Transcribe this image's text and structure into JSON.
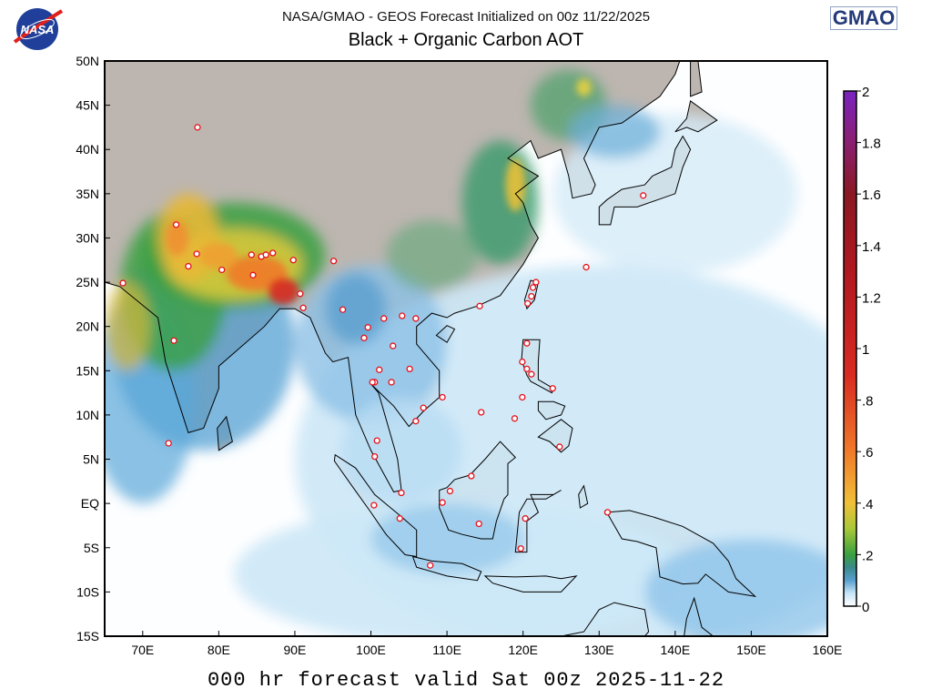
{
  "header": {
    "subtitle": "NASA/GMAO - GEOS Forecast Initialized on 00z 11/22/2025",
    "title": "Black + Organic Carbon AOT",
    "logo_left": "NASA",
    "logo_right": "GMAO"
  },
  "footer": "000 hr forecast valid Sat 00z 2025-11-22",
  "map": {
    "lon_range": [
      65,
      160
    ],
    "lat_range": [
      -15,
      50
    ],
    "lon_ticks": [
      {
        "v": 70,
        "label": "70E"
      },
      {
        "v": 80,
        "label": "80E"
      },
      {
        "v": 90,
        "label": "90E"
      },
      {
        "v": 100,
        "label": "100E"
      },
      {
        "v": 110,
        "label": "110E"
      },
      {
        "v": 120,
        "label": "120E"
      },
      {
        "v": 130,
        "label": "130E"
      },
      {
        "v": 140,
        "label": "140E"
      },
      {
        "v": 150,
        "label": "150E"
      },
      {
        "v": 160,
        "label": "160E"
      }
    ],
    "lat_ticks": [
      {
        "v": 50,
        "label": "50N"
      },
      {
        "v": 45,
        "label": "45N"
      },
      {
        "v": 40,
        "label": "40N"
      },
      {
        "v": 35,
        "label": "35N"
      },
      {
        "v": 30,
        "label": "30N"
      },
      {
        "v": 25,
        "label": "25N"
      },
      {
        "v": 20,
        "label": "20N"
      },
      {
        "v": 15,
        "label": "15N"
      },
      {
        "v": 10,
        "label": "10N"
      },
      {
        "v": 5,
        "label": "5N"
      },
      {
        "v": 0,
        "label": "EQ"
      },
      {
        "v": -5,
        "label": "5S"
      },
      {
        "v": -10,
        "label": "10S"
      },
      {
        "v": -15,
        "label": "15S"
      }
    ],
    "colors": {
      "land": "#bdb6b0",
      "ocean": "#fdfeff",
      "marker": "#e8101a"
    },
    "markers": [
      [
        77.2,
        42.5
      ],
      [
        74.4,
        31.5
      ],
      [
        76,
        26.8
      ],
      [
        77.1,
        28.2
      ],
      [
        80.4,
        26.4
      ],
      [
        84.3,
        28.1
      ],
      [
        84.5,
        25.8
      ],
      [
        85.6,
        27.9
      ],
      [
        86.2,
        28.1
      ],
      [
        87.1,
        28.3
      ],
      [
        89.8,
        27.5
      ],
      [
        95.1,
        27.4
      ],
      [
        67.4,
        24.9
      ],
      [
        90.7,
        23.7
      ],
      [
        91.1,
        22.1
      ],
      [
        96.3,
        21.9
      ],
      [
        74.1,
        18.4
      ],
      [
        99.6,
        19.9
      ],
      [
        99.1,
        18.7
      ],
      [
        101.7,
        20.9
      ],
      [
        104.1,
        21.2
      ],
      [
        105.9,
        20.9
      ],
      [
        102.9,
        17.8
      ],
      [
        101.1,
        15.1
      ],
      [
        105.1,
        15.2
      ],
      [
        100.5,
        13.7
      ],
      [
        100.2,
        13.7
      ],
      [
        102.7,
        13.7
      ],
      [
        106.9,
        10.8
      ],
      [
        109.4,
        12
      ],
      [
        105.9,
        9.3
      ],
      [
        114.3,
        22.3
      ],
      [
        121.7,
        25
      ],
      [
        121.3,
        24.4
      ],
      [
        121.1,
        23.4
      ],
      [
        120.6,
        22.6
      ],
      [
        128.3,
        26.7
      ],
      [
        135.8,
        34.8
      ],
      [
        120.5,
        18.1
      ],
      [
        119.9,
        16
      ],
      [
        120.5,
        15.2
      ],
      [
        121.1,
        14.6
      ],
      [
        123.9,
        13
      ],
      [
        119.9,
        12
      ],
      [
        118.9,
        9.6
      ],
      [
        114.5,
        10.3
      ],
      [
        124.8,
        6.4
      ],
      [
        100.8,
        7.1
      ],
      [
        100.5,
        5.3
      ],
      [
        104,
        1.2
      ],
      [
        110.4,
        1.4
      ],
      [
        113.2,
        3.1
      ],
      [
        109.4,
        0.1
      ],
      [
        100.4,
        -0.2
      ],
      [
        103.8,
        -1.7
      ],
      [
        114.2,
        -2.3
      ],
      [
        120.3,
        -1.7
      ],
      [
        119.7,
        -5.1
      ],
      [
        107.8,
        -7
      ],
      [
        131.1,
        -1
      ],
      [
        73.4,
        6.8
      ]
    ]
  },
  "colorbar": {
    "range": [
      0,
      2
    ],
    "ticks": [
      {
        "v": 0,
        "label": "0"
      },
      {
        "v": 0.2,
        "label": ".2"
      },
      {
        "v": 0.4,
        "label": ".4"
      },
      {
        "v": 0.6,
        "label": ".6"
      },
      {
        "v": 0.8,
        "label": ".8"
      },
      {
        "v": 1,
        "label": "1"
      },
      {
        "v": 1.2,
        "label": "1.2"
      },
      {
        "v": 1.4,
        "label": "1.4"
      },
      {
        "v": 1.6,
        "label": "1.6"
      },
      {
        "v": 1.8,
        "label": "1.8"
      },
      {
        "v": 2,
        "label": "2"
      }
    ],
    "stops": [
      {
        "v": 0,
        "c": "#ffffff"
      },
      {
        "v": 0.05,
        "c": "#c8e6f8"
      },
      {
        "v": 0.1,
        "c": "#5a9fd0"
      },
      {
        "v": 0.15,
        "c": "#3a8a8a"
      },
      {
        "v": 0.2,
        "c": "#3aa040"
      },
      {
        "v": 0.3,
        "c": "#a8c838"
      },
      {
        "v": 0.4,
        "c": "#f0c038"
      },
      {
        "v": 0.6,
        "c": "#f07a2a"
      },
      {
        "v": 0.9,
        "c": "#d82a22"
      },
      {
        "v": 1.3,
        "c": "#b01820"
      },
      {
        "v": 1.6,
        "c": "#8a1822"
      },
      {
        "v": 1.8,
        "c": "#8a2070"
      },
      {
        "v": 2,
        "c": "#7a22c0"
      }
    ]
  }
}
